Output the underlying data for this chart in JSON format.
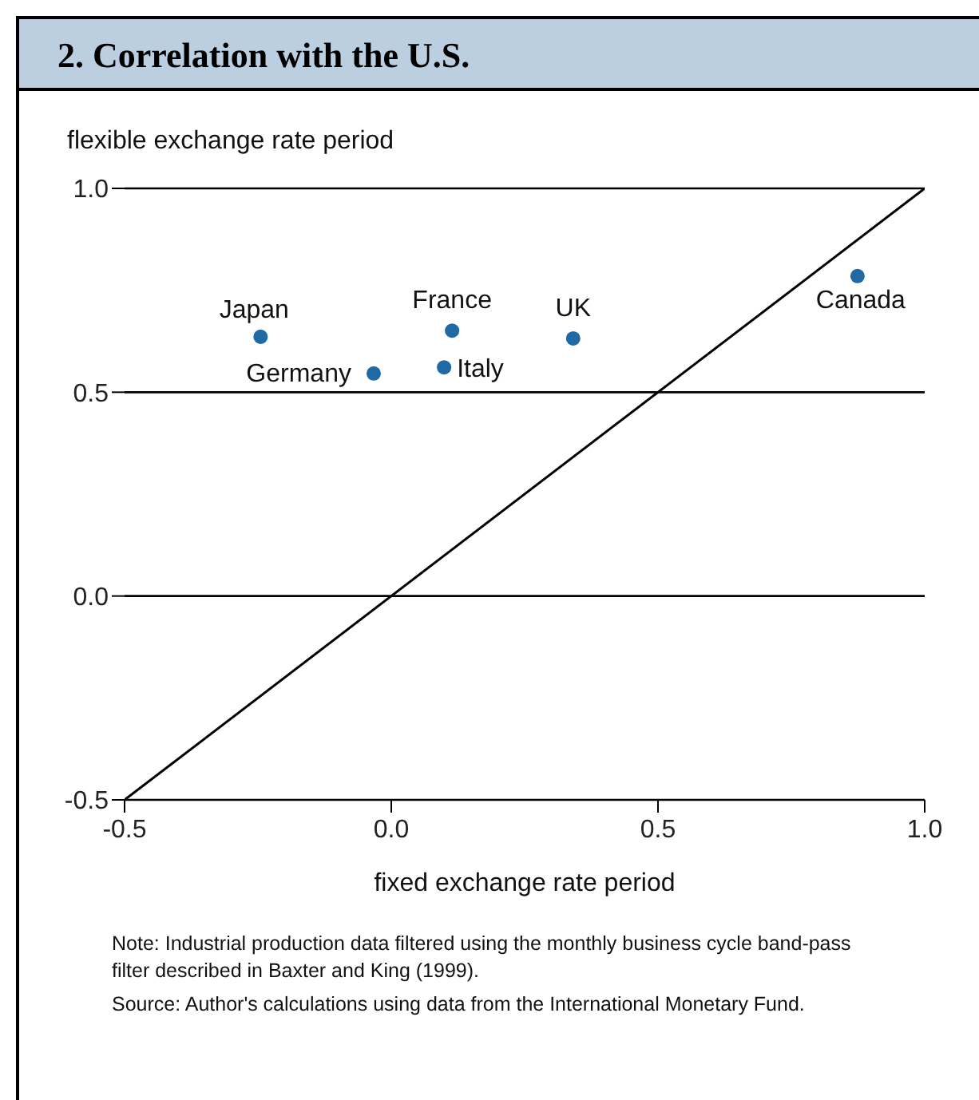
{
  "chart_data": {
    "type": "scatter",
    "title": "2. Correlation with the U.S.",
    "xlabel": "fixed exchange rate period",
    "ylabel": "flexible exchange rate period",
    "x": [
      -0.245,
      -0.033,
      0.114,
      0.099,
      0.341,
      0.874
    ],
    "series": [
      {
        "color": "#1f6aa5",
        "marker": "circle",
        "values": [
          0.636,
          0.546,
          0.651,
          0.561,
          0.632,
          0.785
        ]
      },
      {
        "type": "line",
        "color": "#000000",
        "marker": "none",
        "x": [
          -0.5,
          1.0
        ],
        "values": [
          -0.5,
          1.0
        ]
      }
    ],
    "xlim": [
      -0.5,
      1.0
    ],
    "xticks": [
      -0.5,
      {
        "value": 0,
        "label": "0.0"
      },
      0.5,
      {
        "value": 1,
        "label": "1.0"
      }
    ],
    "ylim": [
      -0.5,
      1.0
    ],
    "yticks": [
      -0.5,
      {
        "value": 0,
        "label": "0.0"
      },
      0.5,
      {
        "value": 1,
        "label": "1.0"
      }
    ],
    "grid": "y",
    "annotations": [
      {
        "text": "Japan",
        "x": -0.245,
        "y": 0.636
      },
      {
        "text": "Germany",
        "x": -0.033,
        "y": 0.546
      },
      {
        "text": "France",
        "x": 0.114,
        "y": 0.651
      },
      {
        "text": "Italy",
        "x": 0.099,
        "y": 0.561
      },
      {
        "text": "UK",
        "x": 0.341,
        "y": 0.632
      },
      {
        "text": "Canada",
        "x": 0.874,
        "y": 0.785
      },
      "Note: Industrial production data filtered using the monthly business cycle band-pass filter described in Baxter and King (1999).",
      "Source: Author's calculations using data from the International Monetary Fund."
    ]
  }
}
